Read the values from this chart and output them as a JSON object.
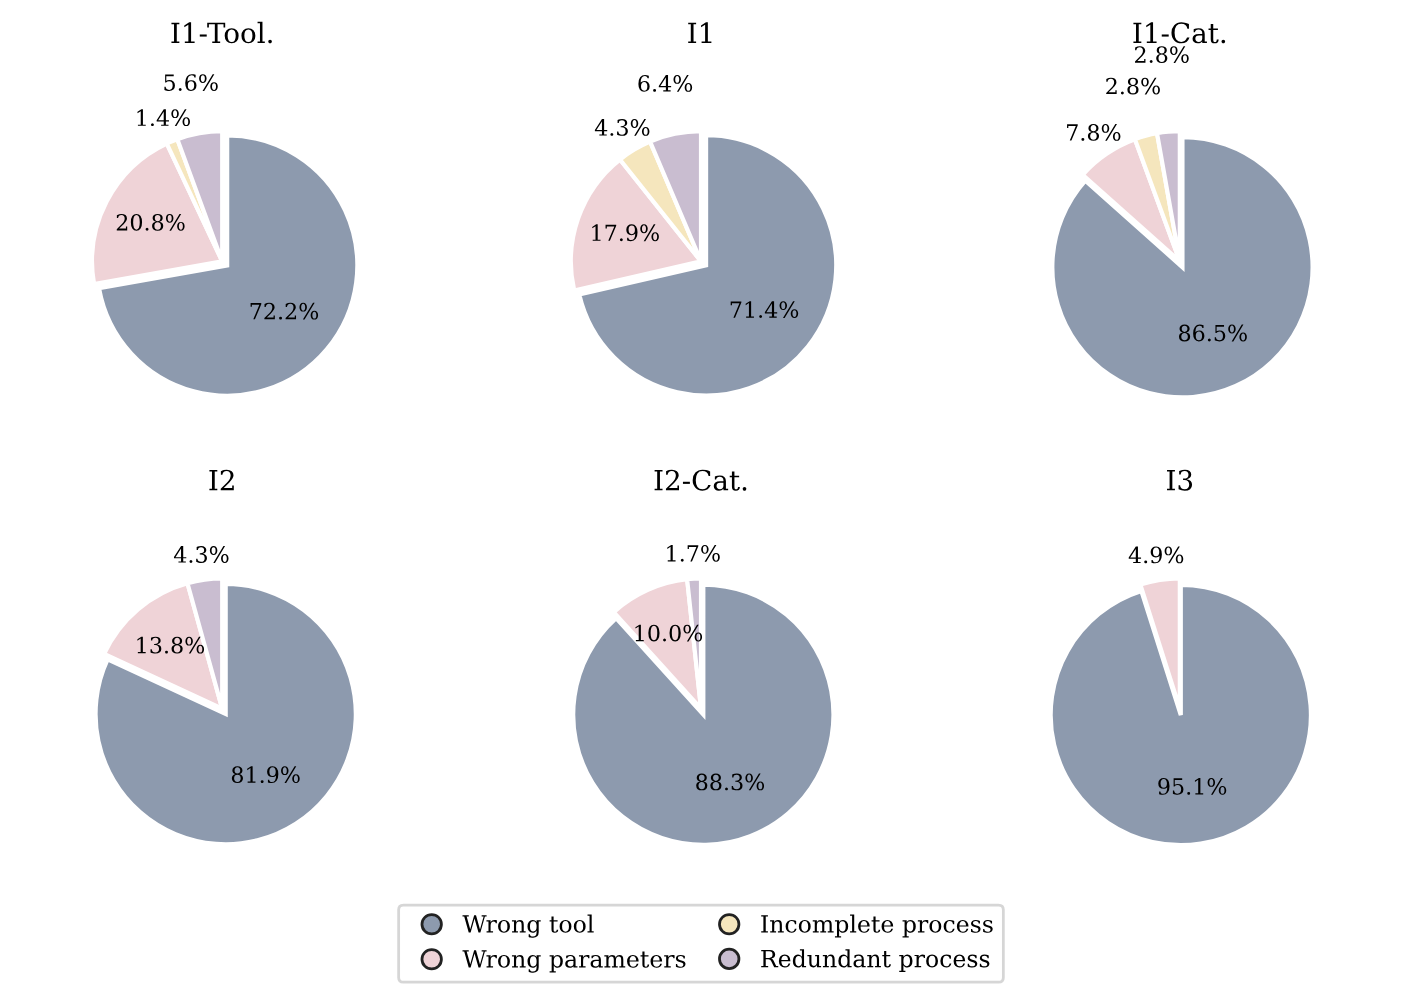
{
  "chart_data": [
    {
      "type": "pie",
      "title": "I1-Tool.",
      "categories": [
        "Wrong tool",
        "Wrong parameters",
        "Incomplete process",
        "Redundant process"
      ],
      "values": [
        72.2,
        20.8,
        1.4,
        5.6
      ],
      "value_labels": [
        "72.2%",
        "20.8%",
        "1.4%",
        "5.6%"
      ],
      "colors": [
        "#8d9aae",
        "#efd3d7",
        "#f5e6bd",
        "#c9bdd0"
      ],
      "legend": "bottom"
    },
    {
      "type": "pie",
      "title": "I1",
      "categories": [
        null,
        null,
        null,
        null
      ],
      "values": [
        71.4,
        17.9,
        4.3,
        6.4
      ],
      "value_labels": [
        "71.4%",
        "17.9%",
        "4.3%",
        "6.4%"
      ],
      "colors": [
        "#8d9aae",
        "#efd3d7",
        "#f5e6bd",
        "#c9bdd0"
      ]
    },
    {
      "type": "pie",
      "title": "I1-Cat.",
      "categories": [
        null,
        null,
        null,
        null
      ],
      "values": [
        86.5,
        7.8,
        2.8,
        2.8
      ],
      "value_labels": [
        "86.5%",
        "7.8%",
        "2.8%",
        "2.8%"
      ],
      "colors": [
        "#8d9aae",
        "#efd3d7",
        "#f5e6bd",
        "#c9bdd0"
      ]
    },
    {
      "type": "pie",
      "title": "I2",
      "categories": [
        null,
        null,
        null
      ],
      "values": [
        81.9,
        13.8,
        4.3
      ],
      "value_labels": [
        "81.9%",
        "13.8%",
        "4.3%"
      ],
      "colors": [
        "#8d9aae",
        "#efd3d7",
        "#c9bdd0"
      ]
    },
    {
      "type": "pie",
      "title": "I2-Cat.",
      "categories": [
        null,
        null,
        null
      ],
      "values": [
        88.3,
        10.0,
        1.7
      ],
      "value_labels": [
        "88.3%",
        "10.0%",
        "1.7%"
      ],
      "colors": [
        "#8d9aae",
        "#efd3d7",
        "#c9bdd0"
      ]
    },
    {
      "type": "pie",
      "title": "I3",
      "categories": [
        null,
        null
      ],
      "values": [
        95.1,
        4.9
      ],
      "value_labels": [
        "95.1%",
        "4.9%"
      ],
      "colors": [
        "#8d9aae",
        "#efd3d7"
      ]
    }
  ]
}
